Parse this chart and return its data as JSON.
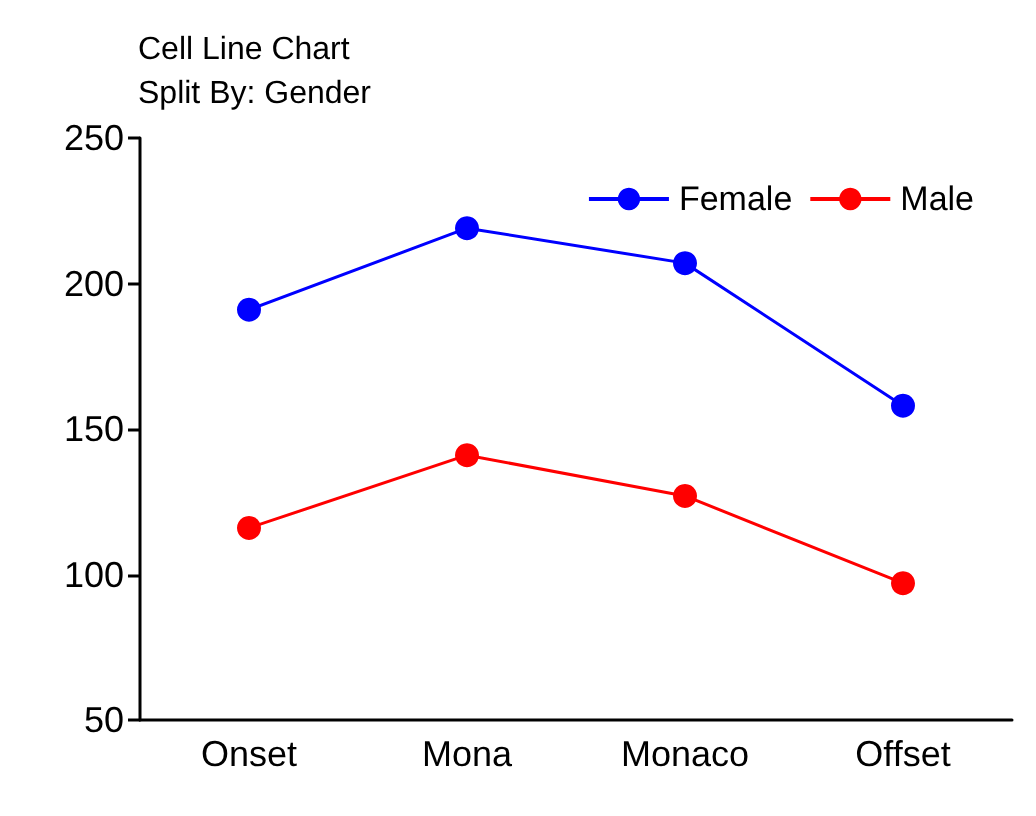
{
  "chart_data": {
    "type": "line",
    "title": "Cell Line Chart",
    "subtitle": "Split By: Gender",
    "categories": [
      "Onset",
      "Mona",
      "Monaco",
      "Offset"
    ],
    "series": [
      {
        "name": "Female",
        "color": "#0000ff",
        "values": [
          191,
          219,
          207,
          158
        ]
      },
      {
        "name": "Male",
        "color": "#ff0000",
        "values": [
          116,
          141,
          127,
          97
        ]
      }
    ],
    "ylim": [
      50,
      250
    ],
    "yticks": [
      50,
      100,
      150,
      200,
      250
    ],
    "grid": false,
    "legend": "top right",
    "marker": "circle",
    "line_style": "solid"
  }
}
